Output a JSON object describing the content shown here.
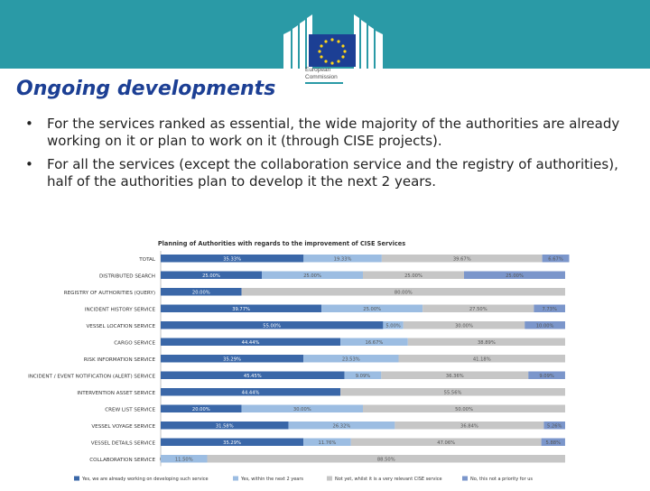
{
  "header": {
    "logo_line1": "European",
    "logo_line2": "Commission"
  },
  "slide": {
    "title": "Ongoing developments",
    "bullets": [
      "For the services ranked as essential, the wide majority of the authorities are already working on it or plan to work on it (through CISE projects).",
      "For all the services (except the collaboration service and the registry of authorities), half of the authorities plan to develop it the next 2 years."
    ],
    "bullet_symbol": "•"
  },
  "colors": {
    "topbar": "#2a9aa6",
    "title": "#1c3f94",
    "series": [
      "#3a67a8",
      "#9cbde2",
      "#c6c6c6",
      "#7b96cb"
    ]
  },
  "chart_data": {
    "type": "bar",
    "orientation": "horizontal",
    "stacked": true,
    "title": "Planning of Authorities with regards to the improvement of CISE Services",
    "categories": [
      "TOTAL",
      "DISTRIBUTED SEARCH",
      "REGISTRY OF AUTHORITIES (QUERY)",
      "INCIDENT HISTORY SERVICE",
      "VESSEL LOCATION SERVICE",
      "CARGO SERVICE",
      "RISK INFORMATION SERVICE",
      "INCIDENT / EVENT NOTIFICATION (ALERT) SERVICE",
      "INTERVENTION ASSET SERVICE",
      "CREW LIST SERVICE",
      "VESSEL VOYAGE SERVICE",
      "VESSEL DETAILS SERVICE",
      "COLLABORATION SERVICE"
    ],
    "series": [
      {
        "name": "Yes, we are already working on developing such service",
        "values": [
          35.33,
          25.0,
          20.0,
          39.77,
          55.0,
          44.44,
          35.29,
          45.45,
          44.44,
          20.0,
          31.58,
          35.29,
          0.0
        ],
        "labels": [
          "35.33%",
          "25.00%",
          "20.00%",
          "39.77%",
          "55.00%",
          "44.44%",
          "35.29%",
          "45.45%",
          "44.44%",
          "20.00%",
          "31.58%",
          "35.29%",
          "0%"
        ]
      },
      {
        "name": "Yes, within the next 2 years",
        "values": [
          19.33,
          25.0,
          0.0,
          25.0,
          5.0,
          16.67,
          23.53,
          9.09,
          0.0,
          30.0,
          26.32,
          11.76,
          11.5
        ],
        "labels": [
          "19.33%",
          "25.00%",
          "",
          "25.00%",
          "5.00%",
          "16.67%",
          "23.53%",
          "9.09%",
          "",
          "30.00%",
          "26.32%",
          "11.76%",
          "11.50%"
        ]
      },
      {
        "name": "Not yet, whilst it is a very relevant CISE service",
        "values": [
          39.67,
          25.0,
          80.0,
          27.5,
          30.0,
          38.89,
          41.18,
          36.36,
          55.56,
          50.0,
          36.84,
          47.06,
          88.5
        ],
        "labels": [
          "39.67%",
          "25.00%",
          "80.00%",
          "27.50%",
          "30.00%",
          "38.89%",
          "41.18%",
          "36.36%",
          "55.56%",
          "50.00%",
          "36.84%",
          "47.06%",
          "88.50%"
        ]
      },
      {
        "name": "No, this not a priority for us",
        "values": [
          6.67,
          25.0,
          0.0,
          7.73,
          10.0,
          0.0,
          0.0,
          9.09,
          0.0,
          0.0,
          5.26,
          5.88,
          0.0
        ],
        "labels": [
          "6.67%",
          "25.00%",
          "",
          "7.73%",
          "10.00%",
          "",
          "",
          "9.09%",
          "",
          "",
          "5.26%",
          "5.88%",
          ""
        ]
      }
    ],
    "xlim": [
      0,
      100
    ],
    "legend": "bottom"
  }
}
